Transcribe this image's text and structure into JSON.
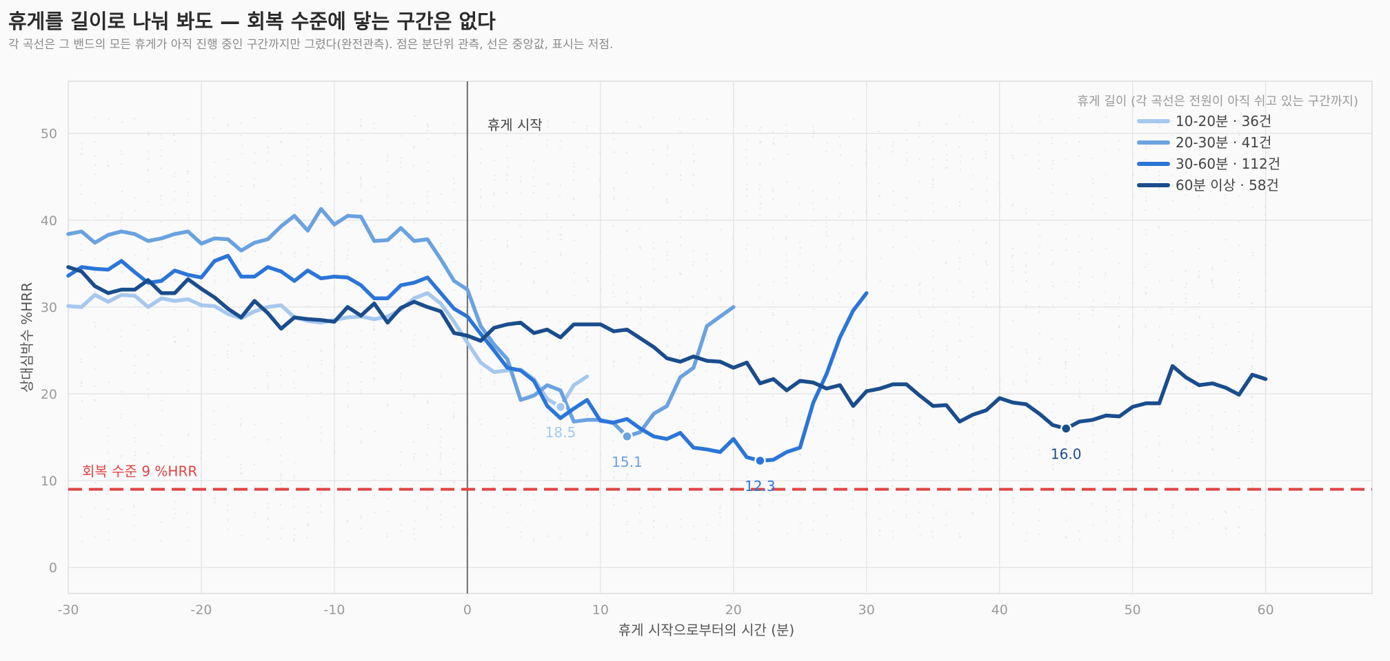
{
  "title": "휴게를 길이로 나눠 봐도 — 회복 수준에 닿는 구간은 없다",
  "subtitle": "각 곡선은 그 밴드의 모든 휴게가 아직 진행 중인 구간까지만 그렸다(완전관측). 점은 분단위 관측, 선은 중앙값, 표시는 저점.",
  "chart_data": {
    "type": "line",
    "xlabel": "휴게 시작으로부터의 시간 (분)",
    "ylabel": "상대심박수 %HRR",
    "xlim": [
      -30,
      68
    ],
    "ylim": [
      -3,
      56
    ],
    "x_ticks": [
      -30,
      -20,
      -10,
      0,
      10,
      20,
      30,
      40,
      50,
      60
    ],
    "y_ticks": [
      0,
      10,
      20,
      30,
      40,
      50
    ],
    "grid": true,
    "legend_title": "휴게 길이 (각 곡선은 전원이 아직 쉬고 있는 구간까지)",
    "legend_position": "top-right",
    "reference_line": {
      "y": 9,
      "label": "회복 수준 9 %HRR",
      "color": "#e04444"
    },
    "vertical_line": {
      "x": 0,
      "label": "휴게 시작",
      "color": "#777777"
    },
    "series": [
      {
        "name": "10-20분 · 36건",
        "color": "#a6c8ee",
        "x": [
          -30,
          -29,
          -28,
          -27,
          -26,
          -25,
          -24,
          -23,
          -22,
          -21,
          -20,
          -19,
          -18,
          -17,
          -16,
          -15,
          -14,
          -13,
          -12,
          -11,
          -10,
          -9,
          -8,
          -7,
          -6,
          -5,
          -4,
          -3,
          -2,
          -1,
          0,
          1,
          2,
          3,
          4,
          5,
          6,
          7,
          8,
          9
        ],
        "y": [
          30.1,
          30.0,
          31.4,
          30.6,
          31.4,
          31.3,
          30.0,
          31.0,
          30.7,
          30.9,
          30.2,
          30.1,
          29.2,
          28.7,
          29.5,
          30.0,
          30.2,
          28.8,
          28.4,
          28.2,
          28.5,
          28.8,
          28.9,
          28.6,
          28.9,
          29.7,
          31.0,
          31.6,
          30.4,
          28.3,
          25.9,
          23.6,
          22.5,
          22.7,
          22.8,
          21.7,
          19.4,
          18.5,
          21.0,
          22.0
        ],
        "min": {
          "x": 7,
          "y": 18.5,
          "label": "18.5"
        }
      },
      {
        "name": "20-30분 · 41건",
        "color": "#6aa2e0",
        "x": [
          -30,
          -29,
          -28,
          -27,
          -26,
          -25,
          -24,
          -23,
          -22,
          -21,
          -20,
          -19,
          -18,
          -17,
          -16,
          -15,
          -14,
          -13,
          -12,
          -11,
          -10,
          -9,
          -8,
          -7,
          -6,
          -5,
          -4,
          -3,
          -2,
          -1,
          0,
          1,
          2,
          3,
          4,
          5,
          6,
          7,
          8,
          9,
          10,
          11,
          12,
          13,
          14,
          15,
          16,
          17,
          18,
          19,
          20
        ],
        "y": [
          38.4,
          38.7,
          37.4,
          38.3,
          38.7,
          38.4,
          37.6,
          37.9,
          38.4,
          38.7,
          37.3,
          37.9,
          37.8,
          36.5,
          37.4,
          37.8,
          39.3,
          40.5,
          38.8,
          41.3,
          39.5,
          40.5,
          40.4,
          37.6,
          37.7,
          39.1,
          37.6,
          37.8,
          35.5,
          33.0,
          32.0,
          27.8,
          25.7,
          24.0,
          19.3,
          19.8,
          21.0,
          20.4,
          16.8,
          17.0,
          17.0,
          16.6,
          15.1,
          15.6,
          17.7,
          18.6,
          21.9,
          23.0,
          27.8,
          28.9,
          30.0
        ],
        "min": {
          "x": 12,
          "y": 15.1,
          "label": "15.1"
        }
      },
      {
        "name": "30-60분 · 112건",
        "color": "#2b75d8",
        "x": [
          -30,
          -29,
          -28,
          -27,
          -26,
          -25,
          -24,
          -23,
          -22,
          -21,
          -20,
          -19,
          -18,
          -17,
          -16,
          -15,
          -14,
          -13,
          -12,
          -11,
          -10,
          -9,
          -8,
          -7,
          -6,
          -5,
          -4,
          -3,
          -2,
          -1,
          0,
          1,
          2,
          3,
          4,
          5,
          6,
          7,
          8,
          9,
          10,
          11,
          12,
          13,
          14,
          15,
          16,
          17,
          18,
          19,
          20,
          21,
          22,
          23,
          24,
          25,
          26,
          27,
          28,
          29,
          30
        ],
        "y": [
          33.6,
          34.6,
          34.4,
          34.3,
          35.3,
          34.0,
          32.8,
          33.0,
          34.2,
          33.7,
          33.4,
          35.3,
          35.9,
          33.5,
          33.5,
          34.6,
          34.1,
          33.0,
          34.2,
          33.3,
          33.5,
          33.4,
          32.5,
          31.0,
          31.0,
          32.5,
          32.8,
          33.4,
          31.6,
          29.8,
          28.9,
          26.9,
          25.0,
          23.0,
          22.7,
          21.5,
          18.6,
          17.2,
          18.3,
          19.3,
          16.9,
          16.7,
          17.1,
          16.0,
          15.1,
          14.8,
          15.5,
          13.8,
          13.6,
          13.3,
          14.8,
          12.7,
          12.3,
          12.4,
          13.3,
          13.8,
          19.0,
          22.3,
          26.5,
          29.6,
          31.6
        ],
        "min": {
          "x": 22,
          "y": 12.3,
          "label": "12.3"
        }
      },
      {
        "name": "60분 이상 · 58건",
        "color": "#1a4d8c",
        "x": [
          -30,
          -29,
          -28,
          -27,
          -26,
          -25,
          -24,
          -23,
          -22,
          -21,
          -20,
          -19,
          -18,
          -17,
          -16,
          -15,
          -14,
          -13,
          -12,
          -11,
          -10,
          -9,
          -8,
          -7,
          -6,
          -5,
          -4,
          -3,
          -2,
          -1,
          0,
          1,
          2,
          3,
          4,
          5,
          6,
          7,
          8,
          9,
          10,
          11,
          12,
          13,
          14,
          15,
          16,
          17,
          18,
          19,
          20,
          21,
          22,
          23,
          24,
          25,
          26,
          27,
          28,
          29,
          30,
          31,
          32,
          33,
          34,
          35,
          36,
          37,
          38,
          39,
          40,
          41,
          42,
          43,
          44,
          45,
          46,
          47,
          48,
          49,
          50,
          51,
          52,
          53,
          54,
          55,
          56,
          57,
          58,
          59,
          60
        ],
        "y": [
          34.6,
          34.1,
          32.4,
          31.6,
          32.0,
          32.0,
          33.1,
          31.6,
          31.6,
          33.2,
          32.1,
          31.1,
          29.8,
          28.8,
          30.7,
          29.3,
          27.5,
          28.8,
          28.6,
          28.5,
          28.3,
          30.0,
          29.0,
          30.4,
          28.2,
          29.9,
          30.6,
          30.0,
          29.5,
          27.0,
          26.7,
          26.1,
          27.6,
          28.0,
          28.2,
          27.0,
          27.4,
          26.5,
          28.0,
          28.0,
          28.0,
          27.2,
          27.4,
          26.4,
          25.4,
          24.1,
          23.7,
          24.3,
          23.8,
          23.7,
          23.0,
          23.6,
          21.2,
          21.7,
          20.4,
          21.5,
          21.3,
          20.6,
          21.0,
          18.6,
          20.3,
          20.6,
          21.1,
          21.1,
          19.8,
          18.6,
          18.7,
          16.8,
          17.6,
          18.1,
          19.5,
          19.0,
          18.8,
          17.7,
          16.4,
          16.0,
          16.8,
          17.0,
          17.5,
          17.4,
          18.5,
          18.9,
          18.9,
          23.2,
          21.9,
          21.0,
          21.2,
          20.7,
          19.9,
          22.2,
          21.7
        ],
        "min": {
          "x": 45,
          "y": 16.0,
          "label": "16.0"
        }
      }
    ]
  }
}
